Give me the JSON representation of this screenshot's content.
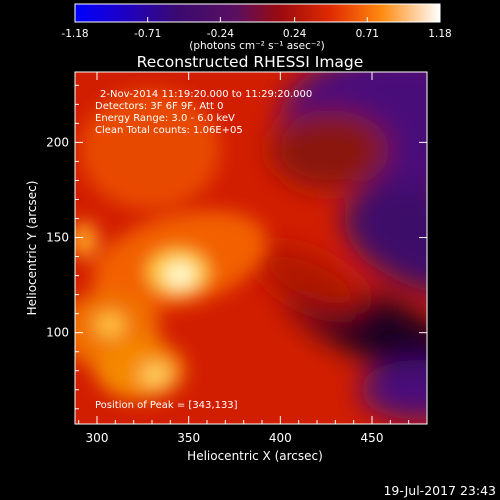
{
  "chart_data": {
    "type": "heatmap",
    "title": "Reconstructed RHESSI Image",
    "xlabel": "Heliocentric X (arcsec)",
    "ylabel": "Heliocentric Y (arcsec)",
    "xlim": [
      288,
      480
    ],
    "ylim": [
      52,
      237
    ],
    "x_ticks": [
      300,
      350,
      400,
      450
    ],
    "y_ticks": [
      100,
      150,
      200
    ],
    "colorbar": {
      "ticks": [
        "-1.18",
        "-0.71",
        "-0.24",
        "0.24",
        "0.71",
        "1.18"
      ],
      "range": [
        -1.18,
        1.18
      ],
      "unit_label": "(photons cm⁻² s⁻¹ asec⁻²)"
    },
    "info_lines": [
      "2-Nov-2014 11:19:20.000 to 11:29:20.000",
      "Detectors: 3F 6F 9F, Att 0",
      "Energy Range: 3.0 - 6.0 keV",
      "Clean     Total counts: 1.06E+05"
    ],
    "peak_label": "Position of Peak = [343,133]",
    "peak": [
      343,
      133
    ],
    "timestamp": "19-Jul-2017 23:43"
  }
}
